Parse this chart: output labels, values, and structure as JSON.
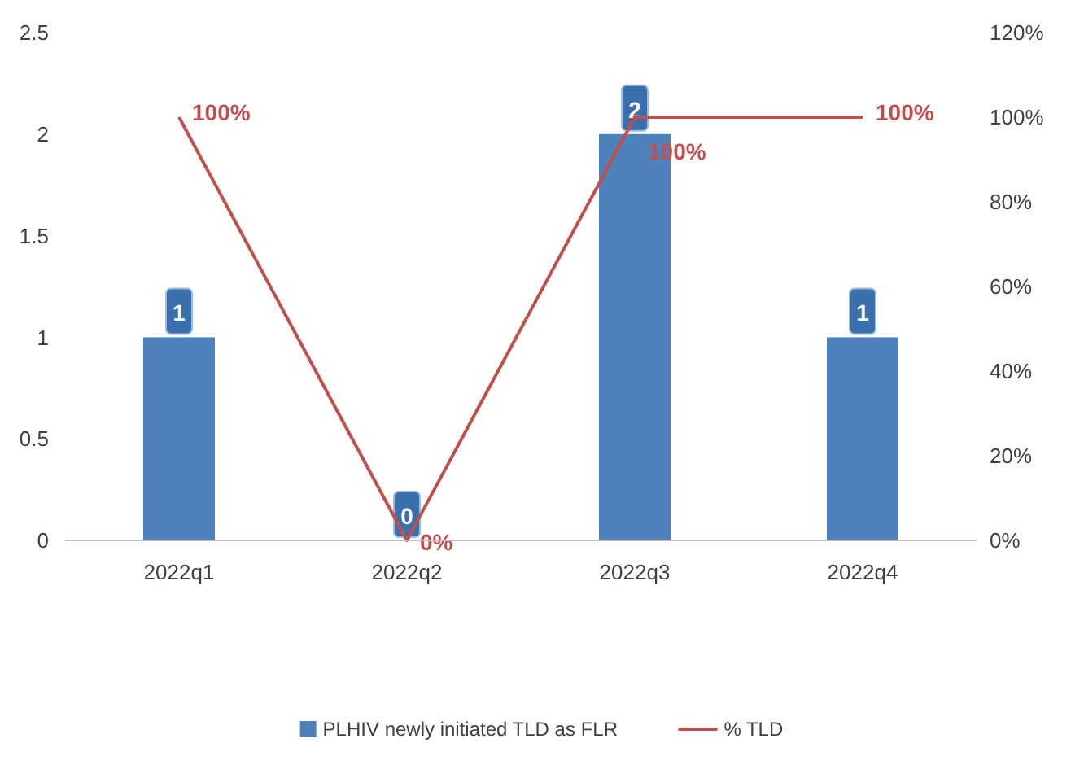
{
  "chart_data": {
    "type": "bar",
    "categories": [
      "2022q1",
      "2022q2",
      "2022q3",
      "2022q4"
    ],
    "series": [
      {
        "name": "PLHIV newly initiated TLD as FLR",
        "color": "#4f81bd",
        "values": [
          1,
          0,
          2,
          1
        ],
        "value_labels": [
          "1",
          "0",
          "2",
          "1"
        ]
      },
      {
        "name": "% TLD",
        "type": "line",
        "axis": "y2",
        "color": "#c0504d",
        "values": [
          100,
          0,
          100,
          100
        ],
        "value_labels": [
          "100%",
          "0%",
          "100%",
          "100%"
        ]
      }
    ],
    "ylim": [
      0,
      2.5
    ],
    "yticks": [
      0,
      0.5,
      1,
      1.5,
      2,
      2.5
    ],
    "y2lim": [
      0,
      120
    ],
    "y2ticks": [
      {
        "value": 0,
        "label": "0%"
      },
      {
        "value": 20,
        "label": "20%"
      },
      {
        "value": 40,
        "label": "40%"
      },
      {
        "value": 60,
        "label": "60%"
      },
      {
        "value": 80,
        "label": "80%"
      },
      {
        "value": 100,
        "label": "100%"
      },
      {
        "value": 120,
        "label": "120%"
      }
    ],
    "legend": "bottom",
    "marker": "none"
  }
}
